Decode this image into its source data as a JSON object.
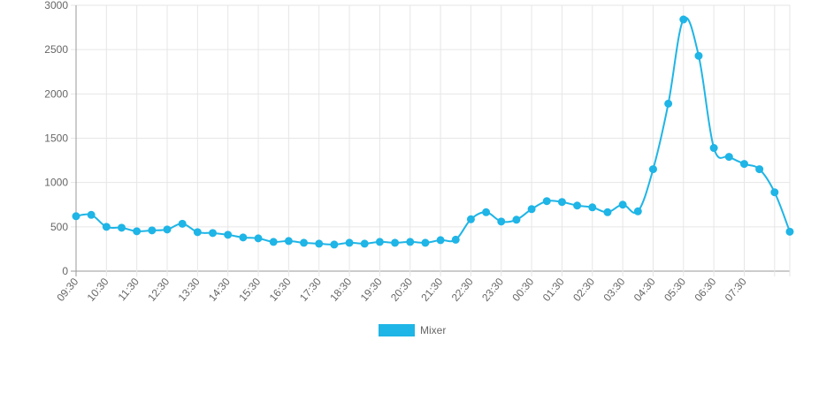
{
  "chart_data": {
    "type": "line",
    "title": "",
    "xlabel": "",
    "ylabel": "",
    "ylim": [
      0,
      3000
    ],
    "yticks": [
      0,
      500,
      1000,
      1500,
      2000,
      2500,
      3000
    ],
    "grid": true,
    "legend_position": "bottom",
    "x_tick_labels": [
      "09:30",
      "10:30",
      "11:30",
      "12:30",
      "13:30",
      "14:30",
      "15:30",
      "16:30",
      "17:30",
      "18:30",
      "19:30",
      "20:30",
      "21:30",
      "22:30",
      "23:30",
      "00:30",
      "01:30",
      "02:30",
      "03:30",
      "04:30",
      "05:30",
      "06:30",
      "07:30"
    ],
    "series": [
      {
        "name": "Mixer",
        "color": "#1fb5e6",
        "values": [
          620,
          635,
          500,
          490,
          450,
          460,
          470,
          535,
          440,
          430,
          410,
          380,
          370,
          330,
          340,
          320,
          310,
          300,
          320,
          310,
          330,
          320,
          330,
          320,
          350,
          355,
          585,
          665,
          560,
          580,
          700,
          790,
          780,
          740,
          720,
          665,
          750,
          675,
          1150,
          1890,
          2840,
          2430,
          1390,
          1290,
          1210,
          1150,
          890,
          445
        ]
      }
    ]
  },
  "legend": {
    "items": [
      {
        "label": "Mixer",
        "color": "#1fb5e6"
      }
    ]
  }
}
